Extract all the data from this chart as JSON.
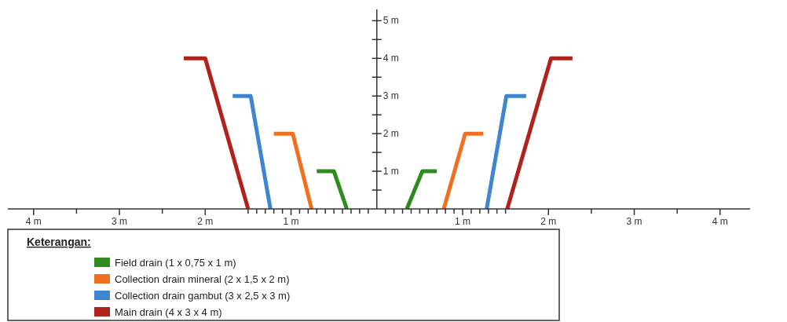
{
  "chart_data": {
    "type": "line",
    "legend_title": "Keterangan:",
    "legend": "bottom left",
    "grid": false,
    "marker": "none",
    "line_style": "solid",
    "xlim": [
      -4.3,
      4.35
    ],
    "ylim": [
      0,
      5.3
    ],
    "xticks": [
      {
        "value": -4,
        "label": "4 m"
      },
      {
        "value": -3.5,
        "label": null
      },
      {
        "value": -3,
        "label": "3 m"
      },
      {
        "value": -2.5,
        "label": null
      },
      {
        "value": -2,
        "label": "2 m"
      },
      {
        "value": -1.5,
        "label": null
      },
      {
        "value": -1.4,
        "label": null
      },
      {
        "value": -1.3,
        "label": null
      },
      {
        "value": -1.2,
        "label": null
      },
      {
        "value": -1.1,
        "label": null
      },
      {
        "value": -1,
        "label": "1 m"
      },
      {
        "value": -0.9,
        "label": null
      },
      {
        "value": -0.8,
        "label": null
      },
      {
        "value": -0.7,
        "label": null
      },
      {
        "value": -0.6,
        "label": null
      },
      {
        "value": -0.5,
        "label": null
      },
      {
        "value": -0.4,
        "label": null
      },
      {
        "value": -0.3,
        "label": null
      },
      {
        "value": -0.2,
        "label": null
      },
      {
        "value": -0.1,
        "label": null
      },
      {
        "value": 0.1,
        "label": null
      },
      {
        "value": 0.2,
        "label": null
      },
      {
        "value": 0.3,
        "label": null
      },
      {
        "value": 0.4,
        "label": null
      },
      {
        "value": 0.5,
        "label": null
      },
      {
        "value": 0.6,
        "label": null
      },
      {
        "value": 0.7,
        "label": null
      },
      {
        "value": 0.8,
        "label": null
      },
      {
        "value": 0.9,
        "label": null
      },
      {
        "value": 1,
        "label": "1 m"
      },
      {
        "value": 1.1,
        "label": null
      },
      {
        "value": 1.2,
        "label": null
      },
      {
        "value": 1.3,
        "label": null
      },
      {
        "value": 1.4,
        "label": null
      },
      {
        "value": 1.5,
        "label": null
      },
      {
        "value": 2,
        "label": "2 m"
      },
      {
        "value": 2.5,
        "label": null
      },
      {
        "value": 3,
        "label": "3 m"
      },
      {
        "value": 3.5,
        "label": null
      },
      {
        "value": 4,
        "label": "4 m"
      }
    ],
    "yticks": [
      {
        "value": 0.5,
        "label": null
      },
      {
        "value": 1,
        "label": "1 m"
      },
      {
        "value": 1.5,
        "label": null
      },
      {
        "value": 2,
        "label": "2 m"
      },
      {
        "value": 2.5,
        "label": null
      },
      {
        "value": 3,
        "label": "3 m"
      },
      {
        "value": 3.5,
        "label": null
      },
      {
        "value": 4,
        "label": "4 m"
      },
      {
        "value": 4.5,
        "label": null
      },
      {
        "value": 5,
        "label": "5 m"
      }
    ],
    "series": [
      {
        "name": "Field drain (1 x 0,75 x 1 m)",
        "color": "#2e8b1e",
        "x": [
          -0.7,
          -0.5,
          -0.35,
          0,
          0.35,
          0.53,
          0.7
        ],
        "values": [
          1,
          1,
          0,
          null,
          0,
          1,
          1
        ]
      },
      {
        "name": "Collection drain mineral (2 x 1,5 x 2 m)",
        "color": "#f07020",
        "x": [
          -1.2,
          -0.98,
          -0.76,
          0,
          0.78,
          1.03,
          1.24
        ],
        "values": [
          2,
          2,
          0,
          null,
          0,
          2,
          2
        ]
      },
      {
        "name": "Collection drain gambut (3 x 2,5 x 3 m)",
        "color": "#3f85d0",
        "x": [
          -1.68,
          -1.47,
          -1.24,
          0,
          1.28,
          1.51,
          1.74
        ],
        "values": [
          3,
          3,
          0,
          null,
          0,
          3,
          3
        ]
      },
      {
        "name": "Main drain (4 x 3 x 4 m)",
        "color": "#b0231c",
        "x": [
          -2.25,
          -2.0,
          -1.5,
          0,
          1.52,
          2.03,
          2.28
        ],
        "values": [
          4,
          4,
          0,
          null,
          0,
          4,
          4
        ]
      }
    ]
  }
}
